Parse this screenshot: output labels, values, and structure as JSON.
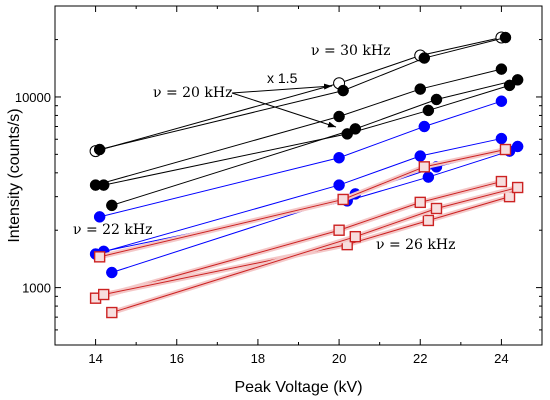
{
  "chart_data": {
    "type": "scatter",
    "title": "",
    "xlabel": "Peak Voltage  (kV)",
    "ylabel": "Intensity (counts/s)",
    "x_scale": "linear",
    "y_scale": "log",
    "xlim": [
      13,
      25
    ],
    "ylim": [
      500,
      30000
    ],
    "x_ticks": [
      14,
      16,
      18,
      20,
      22,
      24
    ],
    "y_tick_labels": [
      {
        "value": 1000,
        "label": "1000"
      },
      {
        "value": 10000,
        "label": "10000"
      }
    ],
    "grid": false,
    "annotations": [
      {
        "id": "nu30",
        "text": "ν = 30 kHz"
      },
      {
        "id": "nu20",
        "text": "ν = 20 kHz"
      },
      {
        "id": "x15",
        "text": "x 1.5"
      },
      {
        "id": "nu22",
        "text": "ν = 22 kHz"
      },
      {
        "id": "nu26",
        "text": "ν = 26 kHz"
      }
    ],
    "series": [
      {
        "color": "#000000",
        "marker": "open-circle",
        "x": [
          14.0,
          20.0,
          22.0,
          24.0
        ],
        "y": [
          5200,
          11800,
          16500,
          20500
        ]
      },
      {
        "color": "#000000",
        "marker": "filled-circle",
        "x": [
          14.1,
          20.1,
          22.1,
          24.1
        ],
        "y": [
          5300,
          10800,
          16000,
          20500
        ]
      },
      {
        "color": "#000000",
        "marker": "filled-circle",
        "x": [
          14.0,
          20.0,
          22.0,
          24.0
        ],
        "y": [
          3450,
          7900,
          11000,
          14000
        ]
      },
      {
        "color": "#000000",
        "marker": "filled-circle",
        "x": [
          14.2,
          20.2,
          22.2,
          24.2
        ],
        "y": [
          3450,
          6400,
          8500,
          11500
        ]
      },
      {
        "color": "#000000",
        "marker": "filled-circle",
        "x": [
          14.4,
          20.4,
          22.4,
          24.4
        ],
        "y": [
          2700,
          6800,
          9700,
          12300
        ]
      },
      {
        "color": "#0000ff",
        "marker": "filled-circle",
        "x": [
          14.1,
          20.0,
          22.1,
          24.0
        ],
        "y": [
          2350,
          4800,
          7000,
          9500
        ]
      },
      {
        "color": "#0000ff",
        "marker": "filled-circle",
        "x": [
          14.0,
          20.0,
          22.0,
          24.0
        ],
        "y": [
          1500,
          3450,
          4900,
          6050
        ]
      },
      {
        "color": "#0000ff",
        "marker": "filled-circle",
        "x": [
          14.2,
          20.2,
          22.2,
          24.2
        ],
        "y": [
          1550,
          2850,
          3800,
          5200
        ]
      },
      {
        "color": "#0000ff",
        "marker": "filled-circle",
        "x": [
          14.4,
          20.4,
          22.4,
          24.4
        ],
        "y": [
          1200,
          3100,
          4300,
          5500
        ]
      },
      {
        "color": "#cc2222",
        "marker": "open-square",
        "x": [
          14.1,
          20.1,
          22.1,
          24.1
        ],
        "y": [
          1450,
          2900,
          4300,
          5300
        ]
      },
      {
        "color": "#cc2222",
        "marker": "open-square",
        "x": [
          14.0,
          20.0,
          22.0,
          24.0
        ],
        "y": [
          880,
          2000,
          2800,
          3600
        ]
      },
      {
        "color": "#cc2222",
        "marker": "open-square",
        "x": [
          14.2,
          20.2,
          22.2,
          24.2
        ],
        "y": [
          920,
          1680,
          2250,
          3000
        ]
      },
      {
        "color": "#cc2222",
        "marker": "open-square",
        "x": [
          14.4,
          20.4,
          22.4,
          24.4
        ],
        "y": [
          740,
          1850,
          2600,
          3350
        ]
      }
    ]
  }
}
